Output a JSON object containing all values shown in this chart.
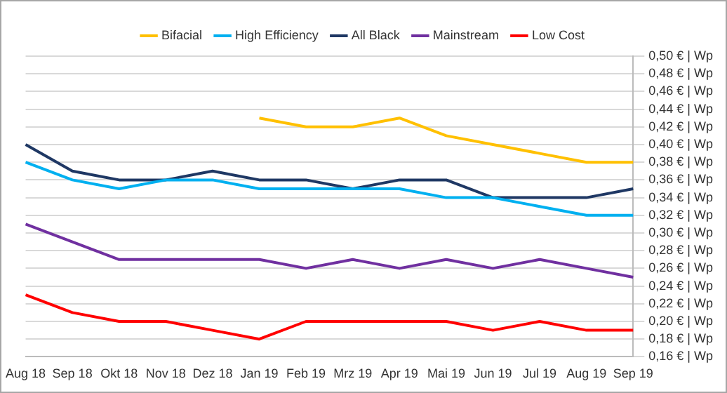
{
  "chart_data": {
    "type": "line",
    "categories": [
      "Aug 18",
      "Sep 18",
      "Okt 18",
      "Nov 18",
      "Dez 18",
      "Jan 19",
      "Feb 19",
      "Mrz 19",
      "Apr 19",
      "Mai 19",
      "Jun 19",
      "Jul 19",
      "Aug 19",
      "Sep 19"
    ],
    "series": [
      {
        "name": "Bifacial",
        "color": "#ffc000",
        "values": [
          null,
          null,
          null,
          null,
          null,
          0.43,
          0.42,
          0.42,
          0.43,
          0.41,
          0.4,
          0.39,
          0.38,
          0.38
        ]
      },
      {
        "name": "High Efficiency",
        "color": "#00b0f0",
        "values": [
          0.38,
          0.36,
          0.35,
          0.36,
          0.36,
          0.35,
          0.35,
          0.35,
          0.35,
          0.34,
          0.34,
          0.33,
          0.32,
          0.32
        ]
      },
      {
        "name": "All Black",
        "color": "#1f3864",
        "values": [
          0.4,
          0.37,
          0.36,
          0.36,
          0.37,
          0.36,
          0.36,
          0.35,
          0.36,
          0.36,
          0.34,
          0.34,
          0.34,
          0.35
        ]
      },
      {
        "name": "Mainstream",
        "color": "#7030a0",
        "values": [
          0.31,
          0.29,
          0.27,
          0.27,
          0.27,
          0.27,
          0.26,
          0.27,
          0.26,
          0.27,
          0.26,
          0.27,
          0.26,
          0.25
        ]
      },
      {
        "name": "Low Cost",
        "color": "#ff0000",
        "values": [
          0.23,
          0.21,
          0.2,
          0.2,
          0.19,
          0.18,
          0.2,
          0.2,
          0.2,
          0.2,
          0.19,
          0.2,
          0.19,
          0.19
        ]
      }
    ],
    "ylim": [
      0.16,
      0.5
    ],
    "yticks": [
      {
        "value": 0.16,
        "label": "0,16 € | Wp"
      },
      {
        "value": 0.18,
        "label": "0,18 € | Wp"
      },
      {
        "value": 0.2,
        "label": "0,20 € | Wp"
      },
      {
        "value": 0.22,
        "label": "0,22 € | Wp"
      },
      {
        "value": 0.24,
        "label": "0,24 € | Wp"
      },
      {
        "value": 0.26,
        "label": "0,26 € | Wp"
      },
      {
        "value": 0.28,
        "label": "0,28 € | Wp"
      },
      {
        "value": 0.3,
        "label": "0,30 € | Wp"
      },
      {
        "value": 0.32,
        "label": "0,32 € | Wp"
      },
      {
        "value": 0.34,
        "label": "0,34 € | Wp"
      },
      {
        "value": 0.36,
        "label": "0,36 € | Wp"
      },
      {
        "value": 0.38,
        "label": "0,38 € | Wp"
      },
      {
        "value": 0.4,
        "label": "0,40 € | Wp"
      },
      {
        "value": 0.42,
        "label": "0,42 € | Wp"
      },
      {
        "value": 0.44,
        "label": "0,44 € | Wp"
      },
      {
        "value": 0.46,
        "label": "0,46 € | Wp"
      },
      {
        "value": 0.48,
        "label": "0,48 € | Wp"
      },
      {
        "value": 0.5,
        "label": "0,50 € | Wp"
      }
    ],
    "grid": "y",
    "legend": "top",
    "marker": "none",
    "line_style": "solid"
  }
}
